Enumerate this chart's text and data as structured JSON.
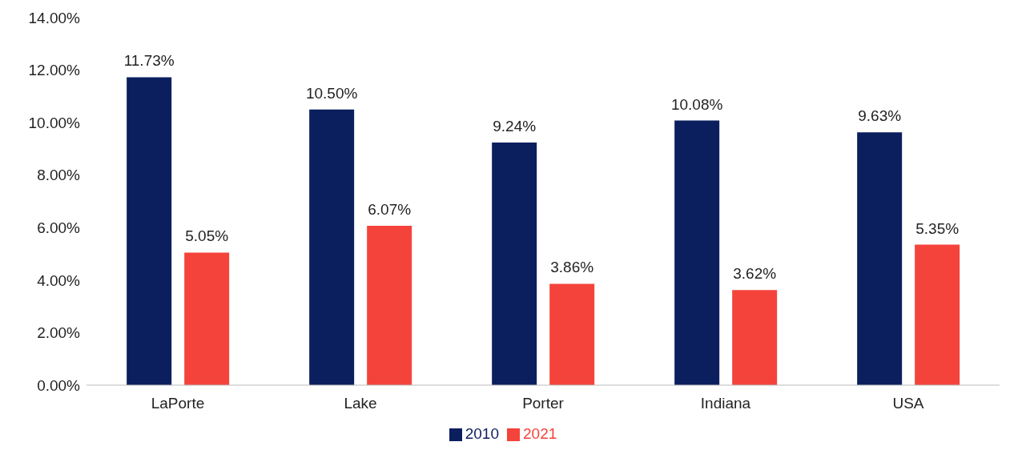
{
  "chart_data": {
    "type": "bar",
    "categories": [
      "LaPorte",
      "Lake",
      "Porter",
      "Indiana",
      "USA"
    ],
    "series": [
      {
        "name": "2010",
        "color": "#0b1f5e",
        "values": [
          11.73,
          10.5,
          9.24,
          10.08,
          9.63
        ],
        "value_labels": [
          "11.73%",
          "10.50%",
          "9.24%",
          "10.08%",
          "9.63%"
        ]
      },
      {
        "name": "2021",
        "color": "#f4433b",
        "values": [
          5.05,
          6.07,
          3.86,
          3.62,
          5.35
        ],
        "value_labels": [
          "5.05%",
          "6.07%",
          "3.86%",
          "3.62%",
          "5.35%"
        ]
      }
    ],
    "ylim": [
      0,
      14
    ],
    "yticks": [
      {
        "value": 0,
        "label": "0.00%"
      },
      {
        "value": 2,
        "label": "2.00%"
      },
      {
        "value": 4,
        "label": "4.00%"
      },
      {
        "value": 6,
        "label": "6.00%"
      },
      {
        "value": 8,
        "label": "8.00%"
      },
      {
        "value": 10,
        "label": "10.00%"
      },
      {
        "value": 12,
        "label": "12.00%"
      },
      {
        "value": 14,
        "label": "14.00%"
      }
    ],
    "grid": false,
    "legend": "bottom"
  }
}
